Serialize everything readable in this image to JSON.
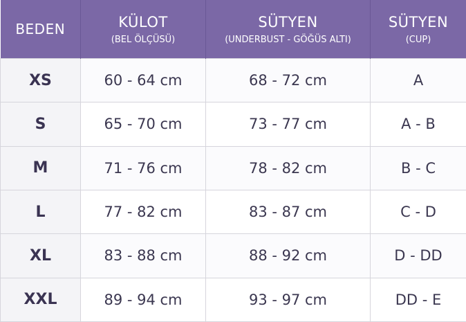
{
  "colors": {
    "header_bg": "#7b68a6",
    "header_text": "#ffffff",
    "body_text": "#3b3750"
  },
  "headers": [
    {
      "main": "BEDEN",
      "sub": ""
    },
    {
      "main": "KÜLOT",
      "sub": "(BEL ÖLÇÜSÜ)"
    },
    {
      "main": "SÜTYEN",
      "sub": "(UNDERBUST - GÖĞÜS ALTI)"
    },
    {
      "main": "SÜTYEN",
      "sub": "(CUP)"
    }
  ],
  "rows": [
    [
      "XS",
      "60 - 64 cm",
      "68 - 72 cm",
      "A"
    ],
    [
      "S",
      "65 - 70 cm",
      "73 - 77 cm",
      "A - B"
    ],
    [
      "M",
      "71 - 76 cm",
      "78 - 82 cm",
      "B - C"
    ],
    [
      "L",
      "77 - 82 cm",
      "83 - 87 cm",
      "C - D"
    ],
    [
      "XL",
      "83 - 88 cm",
      "88 - 92 cm",
      "D - DD"
    ],
    [
      "XXL",
      "89 - 94 cm",
      "93 - 97 cm",
      "DD - E"
    ]
  ]
}
